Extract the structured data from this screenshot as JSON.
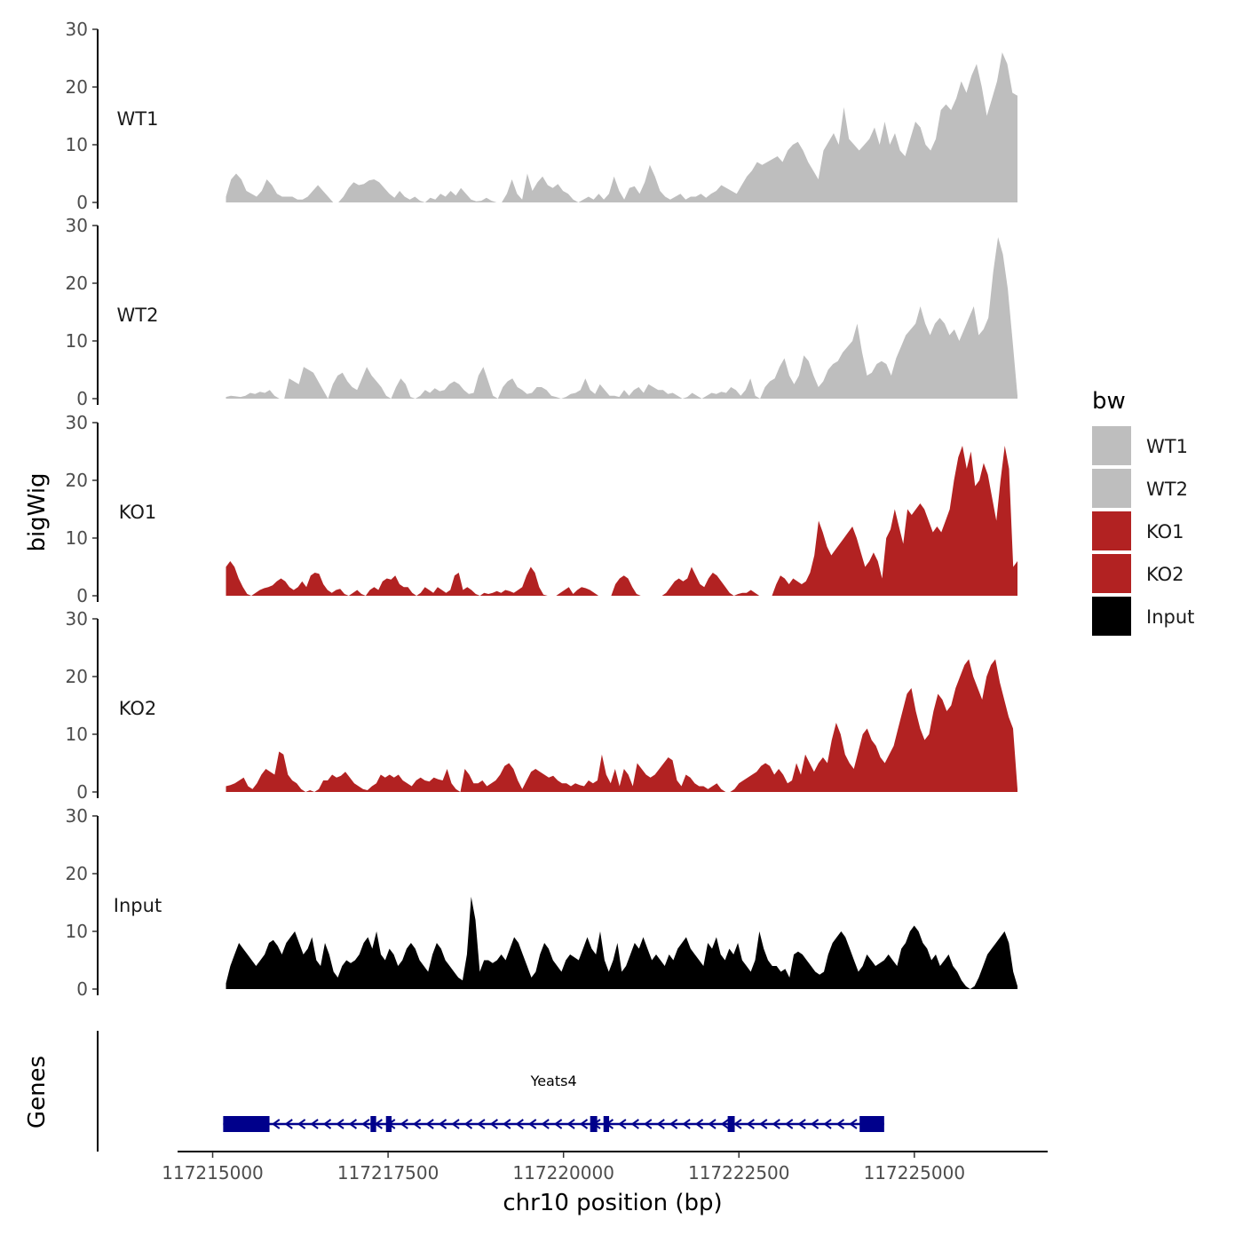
{
  "chart_data": {
    "type": "area",
    "chromosome": "chr10",
    "xlabel": "chr10 position (bp)",
    "ylabel": "bigWig",
    "gene_track_label": "Genes",
    "xlim": [
      117214500,
      117226900
    ],
    "ylim": [
      0,
      30
    ],
    "x_ticks": [
      117215000,
      117217500,
      117220000,
      117222500,
      117225000
    ],
    "x_tick_labels": [
      "117215000",
      "117217500",
      "117220000",
      "117222500",
      "117225000"
    ],
    "y_ticks": [
      0,
      10,
      20,
      30
    ],
    "y_tick_labels": [
      "0",
      "10",
      "20",
      "30"
    ],
    "signal_x_range": [
      117215190,
      117226470
    ],
    "legend": {
      "title": "bw",
      "entries": [
        {
          "name": "WT1",
          "color": "#bebebe"
        },
        {
          "name": "WT2",
          "color": "#bebebe"
        },
        {
          "name": "KO1",
          "color": "#b22222"
        },
        {
          "name": "KO2",
          "color": "#b22222"
        },
        {
          "name": "Input",
          "color": "#000000"
        }
      ]
    },
    "series": [
      {
        "name": "WT1",
        "color": "#bebebe",
        "values": [
          1,
          4,
          5,
          4,
          2,
          1.5,
          1,
          2,
          4,
          3,
          1.5,
          1,
          1,
          1,
          0.5,
          0.5,
          1,
          2,
          3,
          2,
          1,
          0,
          0,
          1,
          2.5,
          3.5,
          3,
          3.2,
          3.8,
          4,
          3.5,
          2.5,
          1.5,
          0.8,
          2,
          1,
          0.5,
          1,
          0.3,
          0,
          0.8,
          0.5,
          1.5,
          1,
          2,
          1.2,
          2.5,
          1.5,
          0.5,
          0.2,
          0.3,
          0.8,
          0.3,
          0,
          0,
          1.5,
          4,
          1.5,
          0.5,
          5,
          2,
          3.5,
          4.5,
          3,
          2.5,
          3.2,
          2,
          1.5,
          0.5,
          0,
          0.5,
          1,
          0.5,
          1.5,
          0.5,
          1.5,
          4.5,
          2,
          0.5,
          2.5,
          2.8,
          1.5,
          3.5,
          6.5,
          4.5,
          2,
          1,
          0.5,
          1,
          1.5,
          0.5,
          1,
          1,
          1.5,
          0.8,
          1.5,
          2,
          3,
          2.5,
          2,
          1.5,
          3,
          4.5,
          5.5,
          7,
          6.5,
          7,
          7.5,
          8,
          7,
          9,
          10,
          10.5,
          9,
          7,
          5.5,
          4,
          9,
          10.5,
          12,
          10,
          16.5,
          11,
          10,
          9,
          10,
          11,
          13,
          10,
          14,
          10,
          12,
          9,
          8,
          11,
          14,
          13,
          10,
          9,
          11,
          16,
          17,
          16,
          18,
          21,
          19,
          22,
          24,
          20,
          15,
          18,
          21,
          26,
          24,
          19,
          18.5
        ]
      },
      {
        "name": "WT2",
        "color": "#bebebe",
        "values": [
          0.3,
          0.5,
          0.4,
          0.3,
          0.5,
          1,
          0.8,
          1.2,
          1,
          1.5,
          0.5,
          0,
          0,
          3.5,
          3,
          2.5,
          5.5,
          5,
          4.5,
          3,
          1.5,
          0,
          2.5,
          4,
          4.5,
          3,
          2,
          1.5,
          3.5,
          5.5,
          4,
          3,
          2,
          0.5,
          0,
          2,
          3.5,
          2.5,
          0.3,
          0,
          0.5,
          1.5,
          1,
          1.8,
          1.3,
          1.5,
          2.5,
          3,
          2.5,
          1.5,
          0.8,
          1,
          4,
          5.5,
          3,
          0.5,
          0,
          2,
          3,
          3.5,
          2,
          1.5,
          0.8,
          1,
          2,
          2,
          1.5,
          0.5,
          0.3,
          0,
          0.3,
          0.8,
          1,
          1.5,
          3.5,
          1.5,
          0.8,
          2.5,
          1.5,
          0.5,
          0.5,
          0.3,
          1.5,
          0.5,
          1.5,
          2,
          1,
          2.5,
          2,
          1.5,
          1.5,
          0.8,
          1,
          0.5,
          0,
          0.3,
          1,
          0.5,
          0,
          0.5,
          1,
          0.8,
          1.2,
          1,
          2,
          1.5,
          0.5,
          1.5,
          3.5,
          0.5,
          0,
          2,
          3,
          3.5,
          5.5,
          7,
          4,
          2.5,
          4,
          7.5,
          6.5,
          4,
          2,
          3,
          5,
          6,
          6.5,
          8,
          9,
          10,
          13,
          8,
          4,
          4.5,
          6,
          6.5,
          6,
          4,
          7,
          9,
          11,
          12,
          13,
          16,
          13,
          11,
          13,
          14,
          13,
          11,
          12,
          10,
          12,
          14,
          16,
          11,
          12,
          14,
          22,
          28,
          25,
          19,
          10,
          0.5
        ]
      },
      {
        "name": "KO1",
        "color": "#b22222",
        "values": [
          5,
          6,
          5,
          3,
          1.5,
          0.3,
          0,
          0.5,
          1,
          1.3,
          1.5,
          1.8,
          2.5,
          3,
          2.5,
          1.5,
          1,
          1.5,
          2.5,
          1.5,
          3.5,
          4,
          3.8,
          2,
          1,
          0.5,
          1,
          1.2,
          0.3,
          0,
          0.5,
          1,
          0.3,
          0,
          1,
          1.5,
          1,
          2.5,
          3,
          2.8,
          3.5,
          2,
          1.5,
          1.5,
          0.5,
          0,
          0.5,
          1.5,
          1,
          0.5,
          1.5,
          1,
          0.5,
          1,
          3.5,
          4,
          1,
          1.5,
          1,
          0.3,
          0,
          0.5,
          0.3,
          0.5,
          0.8,
          0.5,
          1,
          0.8,
          0.5,
          1,
          1.5,
          3.5,
          5,
          4,
          1.5,
          0.2,
          0,
          0,
          0,
          0.5,
          1,
          1.5,
          0.3,
          1,
          1.5,
          1.3,
          1,
          0.5,
          0,
          0,
          0,
          0,
          2,
          3,
          3.5,
          3,
          1.5,
          0.3,
          0,
          0,
          0,
          0,
          0,
          0,
          0.5,
          1.5,
          2.5,
          3,
          2.5,
          3,
          5,
          3.5,
          2,
          1.5,
          3,
          4,
          3.5,
          2.5,
          1.5,
          0.5,
          0,
          0.3,
          0.5,
          0.5,
          1,
          0.5,
          0,
          0,
          0,
          0,
          2,
          3.5,
          3,
          2,
          3,
          2.5,
          2,
          2.5,
          4,
          7,
          13,
          11,
          8.5,
          7,
          8,
          9,
          10,
          11,
          12,
          10,
          7.5,
          5,
          6,
          7.5,
          6,
          3,
          10,
          11.5,
          15,
          12,
          9,
          15,
          14,
          15,
          16,
          15,
          13,
          11,
          12,
          11,
          13,
          15,
          20,
          24,
          26,
          22,
          25,
          19,
          20,
          23,
          21,
          17,
          13,
          20,
          26,
          22,
          5,
          6
        ]
      },
      {
        "name": "KO2",
        "color": "#b22222",
        "values": [
          1,
          1.2,
          1.5,
          2,
          2.5,
          1,
          0.5,
          1.5,
          3,
          4,
          3.5,
          3,
          7,
          6.5,
          3,
          2,
          1.5,
          0.5,
          0,
          0.3,
          0,
          0.5,
          2,
          2,
          3,
          2.5,
          2.8,
          3.5,
          2.5,
          1.5,
          1,
          0.5,
          0.3,
          1,
          1.5,
          3,
          2.5,
          3,
          2.5,
          3,
          2,
          1.5,
          1,
          2,
          2.5,
          2,
          1.8,
          2.5,
          2.2,
          2,
          4,
          1.5,
          0.5,
          0,
          4,
          3,
          1.5,
          1.5,
          2,
          1,
          1.5,
          2,
          3,
          4.5,
          5,
          4,
          2,
          0.5,
          2,
          3.5,
          4,
          3.5,
          3,
          2.5,
          2.8,
          2,
          1.5,
          1.5,
          1,
          1.5,
          1.2,
          1,
          2,
          1.5,
          2,
          6.5,
          3,
          1.5,
          4,
          1,
          4,
          3,
          1,
          5,
          4,
          3,
          2.5,
          3,
          4,
          5,
          6,
          5.5,
          2,
          1,
          3,
          2.5,
          1.5,
          1,
          1,
          0.5,
          1,
          1.5,
          0.5,
          0,
          0,
          0.5,
          1.5,
          2,
          2.5,
          3,
          3.5,
          4.5,
          5,
          4.5,
          3,
          4,
          3,
          1.5,
          2,
          5,
          3,
          6.5,
          5,
          3.5,
          5,
          6,
          5,
          9,
          12,
          10,
          6.5,
          5,
          4,
          7,
          10,
          11,
          9,
          8,
          6,
          5,
          6.5,
          8,
          11,
          14,
          17,
          18,
          14,
          11,
          9,
          10,
          14,
          17,
          16,
          14,
          15,
          18,
          20,
          22,
          23,
          20,
          18,
          16,
          20,
          22,
          23,
          19,
          16,
          13,
          11,
          0.5
        ]
      },
      {
        "name": "Input",
        "color": "#000000",
        "values": [
          1,
          4,
          6,
          8,
          7,
          6,
          5,
          4,
          5,
          6,
          8,
          8.5,
          7.5,
          6,
          8,
          9,
          10,
          8,
          6,
          7,
          9,
          5,
          4,
          8,
          6,
          3,
          2,
          4,
          5,
          4.5,
          5,
          6,
          8,
          9,
          7,
          10,
          6,
          5,
          7,
          6,
          4,
          5,
          7,
          8,
          7,
          5,
          4,
          3,
          6,
          8,
          7,
          5,
          4,
          3,
          2,
          1.5,
          6,
          16,
          12,
          3,
          5,
          5,
          4.5,
          5,
          6,
          5,
          7,
          9,
          8,
          6,
          4,
          2,
          3,
          6,
          8,
          7,
          5,
          4,
          3,
          5,
          6,
          5.5,
          5,
          7,
          9,
          7,
          6,
          10,
          5,
          3,
          5,
          8,
          3,
          4,
          6,
          8,
          7,
          9,
          7,
          5,
          6,
          5,
          4,
          6,
          5,
          7,
          8,
          9,
          7,
          6,
          5,
          4,
          8,
          7,
          9,
          6,
          5,
          7,
          6,
          8,
          5,
          4,
          3,
          5,
          10,
          7,
          5,
          4,
          4,
          3,
          3.5,
          2,
          6,
          6.5,
          6,
          5,
          4,
          3,
          2.5,
          3,
          6,
          8,
          9,
          10,
          9,
          7,
          5,
          3,
          4,
          6,
          5,
          4,
          4.5,
          5,
          6,
          5,
          4,
          7,
          8,
          10,
          11,
          10,
          8,
          7,
          5,
          6,
          4,
          5,
          6,
          4,
          3,
          1.5,
          0.5,
          0,
          0.5,
          2,
          4,
          6,
          7,
          8,
          9,
          10,
          8,
          3,
          0.5
        ]
      }
    ],
    "gene": {
      "name": "Yeats4",
      "strand": "-",
      "start": 117215150,
      "end": 117224570,
      "color": "#00008b",
      "exons": [
        [
          117215150,
          117215810
        ],
        [
          117217250,
          117217330
        ],
        [
          117217470,
          117217550
        ],
        [
          117220380,
          117220480
        ],
        [
          117220570,
          117220650
        ],
        [
          117222340,
          117222440
        ],
        [
          117224220,
          117224570
        ]
      ]
    }
  }
}
